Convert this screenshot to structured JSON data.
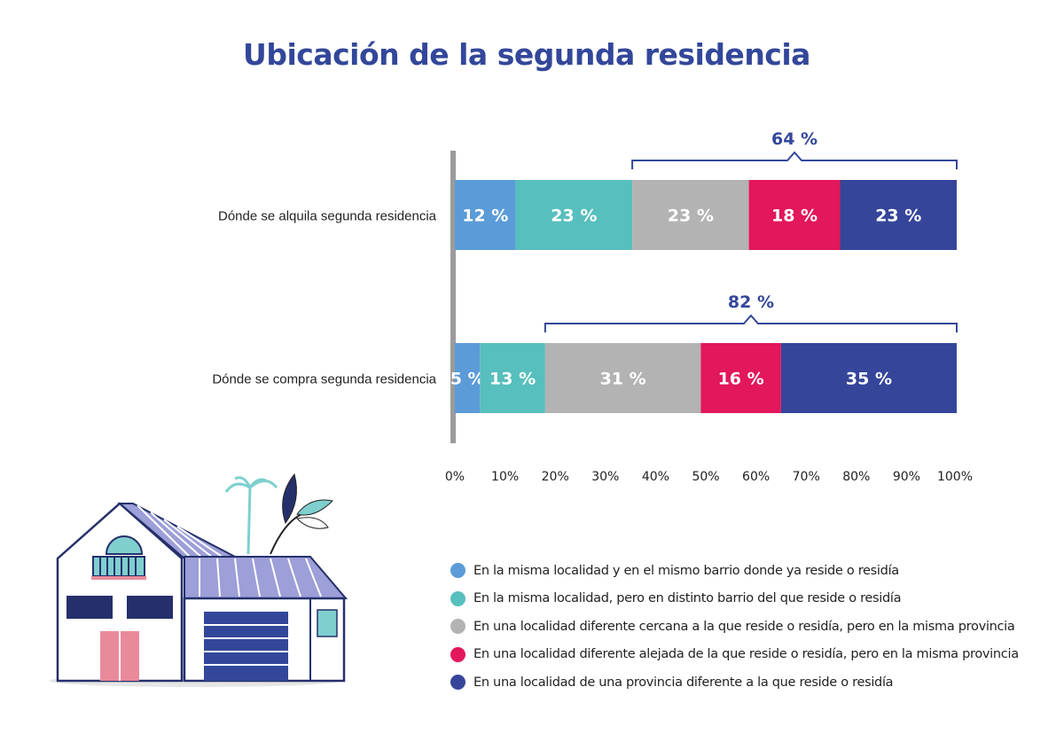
{
  "chart_data": {
    "type": "bar",
    "orientation": "horizontal",
    "stacked": true,
    "title": "Ubicación de la segunda residencia",
    "categories": [
      "Dónde se alquila segunda residencia",
      "Dónde se compra segunda residencia"
    ],
    "series": [
      {
        "name": "En la misma localidad y en el mismo barrio donde ya reside o residía",
        "color": "#5b9bd8",
        "values": [
          12,
          5
        ]
      },
      {
        "name": "En la misma localidad, pero en distinto barrio del que reside o residía",
        "color": "#57bfbd",
        "values": [
          23,
          13
        ]
      },
      {
        "name": "En una localidad diferente cercana a la que reside o residía, pero en la misma provincia",
        "color": "#b3b3b3",
        "values": [
          23,
          31
        ]
      },
      {
        "name": "En una localidad diferente alejada de la que reside o residía, pero en la misma provincia",
        "color": "#e3175b",
        "values": [
          18,
          16
        ]
      },
      {
        "name": "En una localidad de una provincia diferente a la que reside o residía",
        "color": "#35459a",
        "values": [
          23,
          35
        ]
      }
    ],
    "data_labels": [
      [
        "12 %",
        "23 %",
        "23 %",
        "18 %",
        "23 %"
      ],
      [
        "5 %",
        "13 %",
        "31 %",
        "16 %",
        "35 %"
      ]
    ],
    "brackets": [
      {
        "category": 0,
        "label": "64 %",
        "first_series": 2,
        "last_series": 4
      },
      {
        "category": 1,
        "label": "82 %",
        "first_series": 2,
        "last_series": 4
      }
    ],
    "xlim": [
      0,
      100
    ],
    "xticks": [
      "0%",
      "10%",
      "20%",
      "30%",
      "40%",
      "50%",
      "60%",
      "70%",
      "80%",
      "90%",
      "100%"
    ],
    "grid": false,
    "legend_position": "bottom-right",
    "accent_color": "#33479a"
  }
}
